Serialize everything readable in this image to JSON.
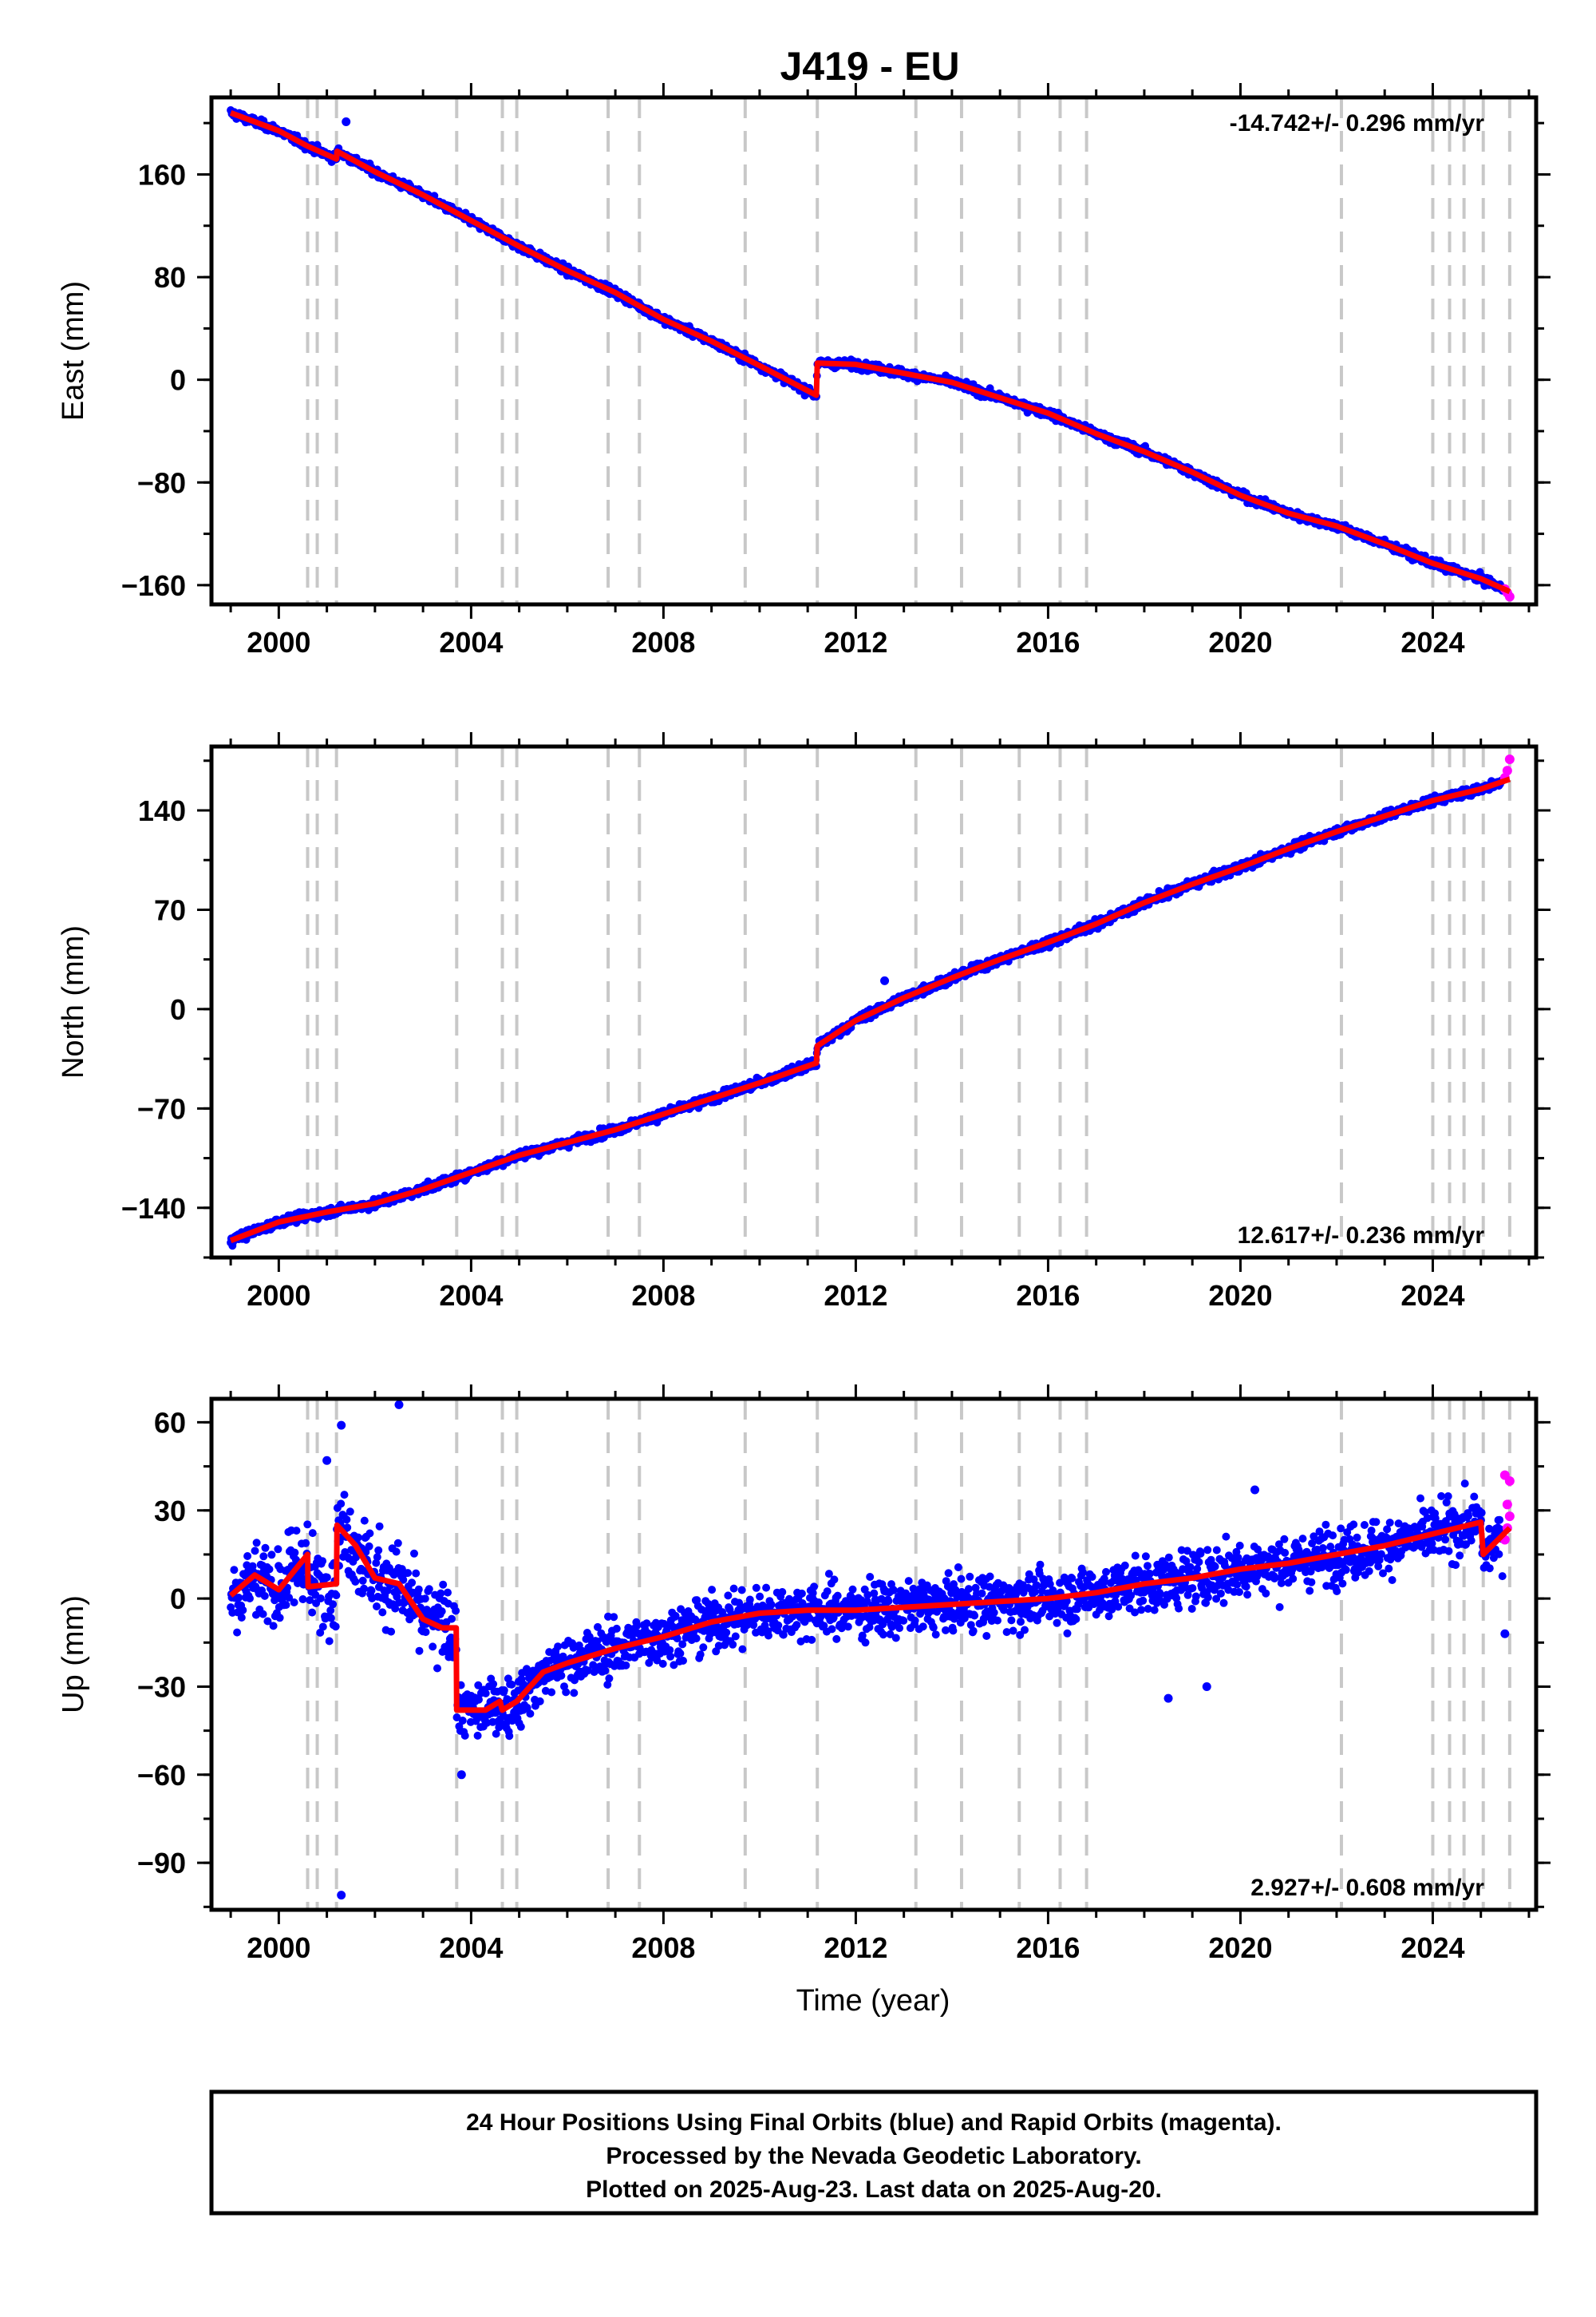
{
  "title": "J419 - EU",
  "xlabel": "Time (year)",
  "x_ticks": [
    2000,
    2004,
    2008,
    2012,
    2016,
    2020,
    2024
  ],
  "xlim": [
    1998.6,
    2026.15
  ],
  "steps": [
    2000.6,
    2000.8,
    2001.2,
    2003.7,
    2004.65,
    2004.95,
    2006.85,
    2007.5,
    2009.7,
    2011.2,
    2013.25,
    2014.2,
    2015.4,
    2016.25,
    2016.8,
    2022.1,
    2024.0,
    2024.35,
    2024.65,
    2025.05,
    2025.6
  ],
  "colors": {
    "final": "#0000ff",
    "rapid": "#ff00ff",
    "model": "#ff0000",
    "steps": "#c8c8c8"
  },
  "chart_data": [
    {
      "type": "scatter",
      "ylabel": "East (mm)",
      "ylim": [
        -175,
        220
      ],
      "y_ticks": [
        160,
        80,
        0,
        -80,
        -160
      ],
      "y_tick_labels": [
        "160",
        "80",
        "0",
        "−80",
        "−160"
      ],
      "rate_label": "-14.742+/- 0.296 mm/yr",
      "rate_position": "top-right",
      "model": {
        "x": [
          1999.0,
          2000.0,
          2000.6,
          2001.2,
          2001.21,
          2002.0,
          2003.0,
          2004.0,
          2005.0,
          2006.0,
          2007.0,
          2008.0,
          2009.0,
          2010.0,
          2011.18,
          2011.2,
          2012.0,
          2013.0,
          2014.0,
          2015.0,
          2016.0,
          2017.0,
          2018.0,
          2019.0,
          2020.0,
          2021.0,
          2022.0,
          2023.0,
          2024.0,
          2025.0,
          2025.6
        ],
        "y": [
          208,
          194,
          182,
          172,
          178,
          162,
          144,
          124,
          104,
          85,
          68,
          47,
          30,
          11,
          -12,
          13,
          12,
          5,
          -2,
          -14,
          -26,
          -42,
          -56,
          -72,
          -90,
          -104,
          -114,
          -128,
          -143,
          -155,
          -165
        ]
      },
      "final_data": {
        "x": [
          2001.4
        ],
        "y": [
          201
        ]
      },
      "rapid_data": {
        "x": [
          2025.5,
          2025.55,
          2025.6
        ],
        "y": [
          -163,
          -166,
          -169
        ]
      }
    },
    {
      "type": "scatter",
      "ylabel": "North (mm)",
      "ylim": [
        -175,
        185
      ],
      "y_ticks": [
        140,
        70,
        0,
        -70,
        -140
      ],
      "y_tick_labels": [
        "140",
        "70",
        "0",
        "−70",
        "−140"
      ],
      "rate_label": "12.617+/- 0.236 mm/yr",
      "rate_position": "bottom-right",
      "model": {
        "x": [
          1999.0,
          2000.0,
          2001.0,
          2002.0,
          2003.0,
          2004.0,
          2005.0,
          2006.0,
          2007.0,
          2008.0,
          2009.0,
          2010.0,
          2011.18,
          2011.2,
          2012.0,
          2013.0,
          2014.0,
          2015.0,
          2016.0,
          2017.0,
          2018.0,
          2019.0,
          2020.0,
          2021.0,
          2022.0,
          2023.0,
          2024.0,
          2025.0,
          2025.6
        ],
        "y": [
          -163,
          -150,
          -143,
          -137,
          -127,
          -115,
          -103,
          -94,
          -85,
          -74,
          -63,
          -52,
          -38,
          -26,
          -8,
          8,
          22,
          35,
          47,
          60,
          75,
          88,
          100,
          113,
          125,
          136,
          147,
          155,
          162
        ]
      },
      "final_data": {
        "x": [
          2012.6
        ],
        "y": [
          20
        ]
      },
      "rapid_data": {
        "x": [
          2025.5,
          2025.55,
          2025.6
        ],
        "y": [
          163,
          168,
          176
        ]
      }
    },
    {
      "type": "scatter",
      "ylabel": "Up (mm)",
      "ylim": [
        -106,
        68
      ],
      "y_ticks": [
        60,
        30,
        0,
        -30,
        -60,
        -90
      ],
      "y_tick_labels": [
        "60",
        "30",
        "0",
        "−30",
        "−60",
        "−90"
      ],
      "rate_label": "2.927+/- 0.608 mm/yr",
      "rate_position": "bottom-right",
      "model": {
        "x": [
          1999.0,
          1999.5,
          2000.0,
          2000.6,
          2000.61,
          2001.2,
          2001.21,
          2001.6,
          2002.0,
          2002.5,
          2003.0,
          2003.4,
          2003.69,
          2003.7,
          2004.3,
          2004.6,
          2004.65,
          2004.95,
          2005.5,
          2006.0,
          2007.0,
          2008.0,
          2009.0,
          2010.0,
          2011.0,
          2012.0,
          2013.0,
          2014.0,
          2015.0,
          2016.0,
          2017.0,
          2018.0,
          2019.0,
          2020.0,
          2021.0,
          2022.0,
          2023.0,
          2024.0,
          2025.0,
          2025.05,
          2025.6
        ],
        "y": [
          1,
          8,
          3,
          15,
          4,
          5,
          25,
          18,
          7,
          5,
          -7,
          -10,
          -10,
          -38,
          -38,
          -35,
          -38,
          -35,
          -25,
          -22,
          -17,
          -13,
          -8,
          -5,
          -4,
          -4,
          -3,
          -2,
          -1,
          0,
          2,
          5,
          7,
          10,
          12,
          15,
          18,
          22,
          26,
          15,
          24
        ]
      },
      "final_data": {
        "x": [
          2001.3,
          2001.3,
          2002.5,
          2001.0,
          2003.8,
          2018.5,
          2019.3,
          2020.3,
          2025.5
        ],
        "y": [
          -101,
          59,
          66,
          47,
          -60,
          -34,
          -30,
          37,
          -12
        ]
      },
      "rapid_data": {
        "x": [
          2025.5,
          2025.55,
          2025.6,
          2025.55,
          2025.6,
          2025.5
        ],
        "y": [
          20,
          24,
          28,
          32,
          40,
          42
        ]
      }
    }
  ],
  "footer": {
    "line1": "24 Hour Positions Using Final Orbits (blue) and Rapid Orbits (magenta).",
    "line2": "Processed by the Nevada Geodetic Laboratory.",
    "line3": "Plotted on 2025-Aug-23. Last data on 2025-Aug-20."
  }
}
